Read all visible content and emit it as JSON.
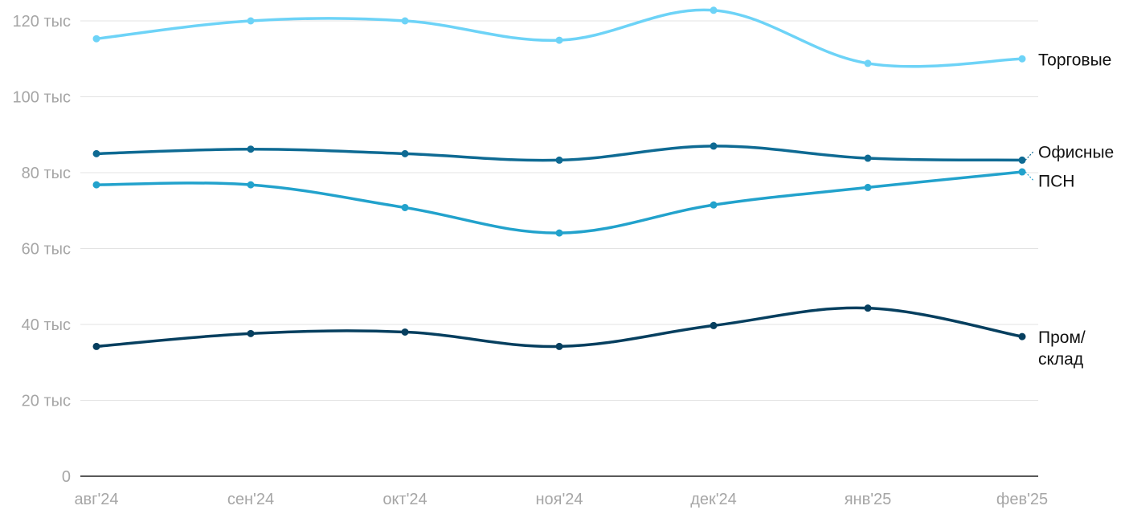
{
  "chart_data": {
    "type": "line",
    "title": "",
    "xlabel": "",
    "ylabel": "",
    "categories": [
      "авг'24",
      "сен'24",
      "окт'24",
      "ноя'24",
      "дек'24",
      "янв'25",
      "фев'25"
    ],
    "ylim": [
      0,
      120000
    ],
    "yticks": [
      {
        "value": 0,
        "label": "0"
      },
      {
        "value": 20000,
        "label": "20 тыс"
      },
      {
        "value": 40000,
        "label": "40 тыс"
      },
      {
        "value": 60000,
        "label": "60 тыс"
      },
      {
        "value": 80000,
        "label": "80 тыс"
      },
      {
        "value": 100000,
        "label": "100 тыс"
      },
      {
        "value": 120000,
        "label": "120 тыс"
      }
    ],
    "grid": true,
    "legend": "direct labels at line ends",
    "series": [
      {
        "name": "Торговые",
        "label_lines": [
          "Торговые"
        ],
        "color": "#6dd3f7",
        "values": [
          115300,
          120000,
          120000,
          114900,
          122800,
          108800,
          110000
        ]
      },
      {
        "name": "Офисные",
        "label_lines": [
          "Офисные"
        ],
        "color": "#0e6a93",
        "values": [
          85000,
          86200,
          85000,
          83300,
          87000,
          83800,
          83300
        ]
      },
      {
        "name": "ПСН",
        "label_lines": [
          "ПСН"
        ],
        "color": "#22a2cc",
        "values": [
          76800,
          76800,
          70800,
          64100,
          71500,
          76100,
          80200
        ]
      },
      {
        "name": "Пром/склад",
        "label_lines": [
          "Пром/",
          "склад"
        ],
        "color": "#063f5f",
        "values": [
          34200,
          37600,
          38000,
          34200,
          39700,
          44300,
          36800
        ]
      }
    ]
  }
}
